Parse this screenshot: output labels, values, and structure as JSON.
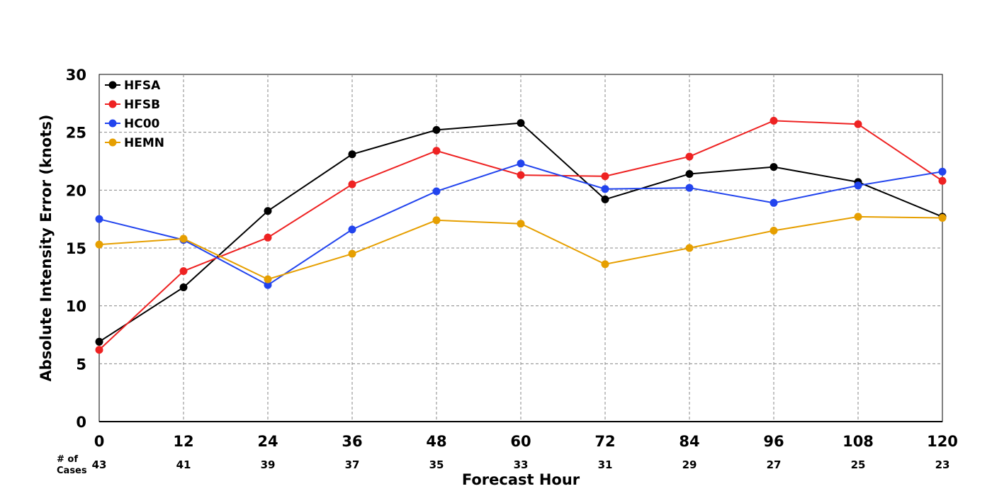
{
  "chart_data": {
    "type": "line",
    "x": [
      0,
      12,
      24,
      36,
      48,
      60,
      72,
      84,
      96,
      108,
      120
    ],
    "xlabel": "Forecast Hour",
    "ylabel": "Absolute Intensity Error (knots)",
    "xlim": [
      0,
      120
    ],
    "ylim": [
      0,
      30
    ],
    "x_ticks": [
      0,
      12,
      24,
      36,
      48,
      60,
      72,
      84,
      96,
      108,
      120
    ],
    "y_ticks": [
      0,
      5,
      10,
      15,
      20,
      25,
      30
    ],
    "grid": true,
    "legend_position": "top-left",
    "series": [
      {
        "name": "HFSA",
        "color": "#000000",
        "values": [
          6.9,
          11.6,
          18.2,
          23.1,
          25.2,
          25.8,
          19.2,
          21.4,
          22.0,
          20.7,
          17.7
        ]
      },
      {
        "name": "HFSB",
        "color": "#ee2222",
        "values": [
          6.2,
          13.0,
          15.9,
          20.5,
          23.4,
          21.3,
          21.2,
          22.9,
          26.0,
          25.7,
          20.8
        ]
      },
      {
        "name": "HC00",
        "color": "#2244ee",
        "values": [
          17.5,
          15.7,
          11.8,
          16.6,
          19.9,
          22.3,
          20.1,
          20.2,
          18.9,
          20.4,
          21.6
        ]
      },
      {
        "name": "HEMN",
        "color": "#e69f00",
        "values": [
          15.3,
          15.8,
          12.3,
          14.5,
          17.4,
          17.1,
          13.6,
          15.0,
          16.5,
          17.7,
          17.6
        ]
      }
    ],
    "cases": {
      "label_line1": "# of",
      "label_line2": "Cases",
      "values": [
        43,
        41,
        39,
        37,
        35,
        33,
        31,
        29,
        27,
        25,
        23
      ]
    }
  }
}
